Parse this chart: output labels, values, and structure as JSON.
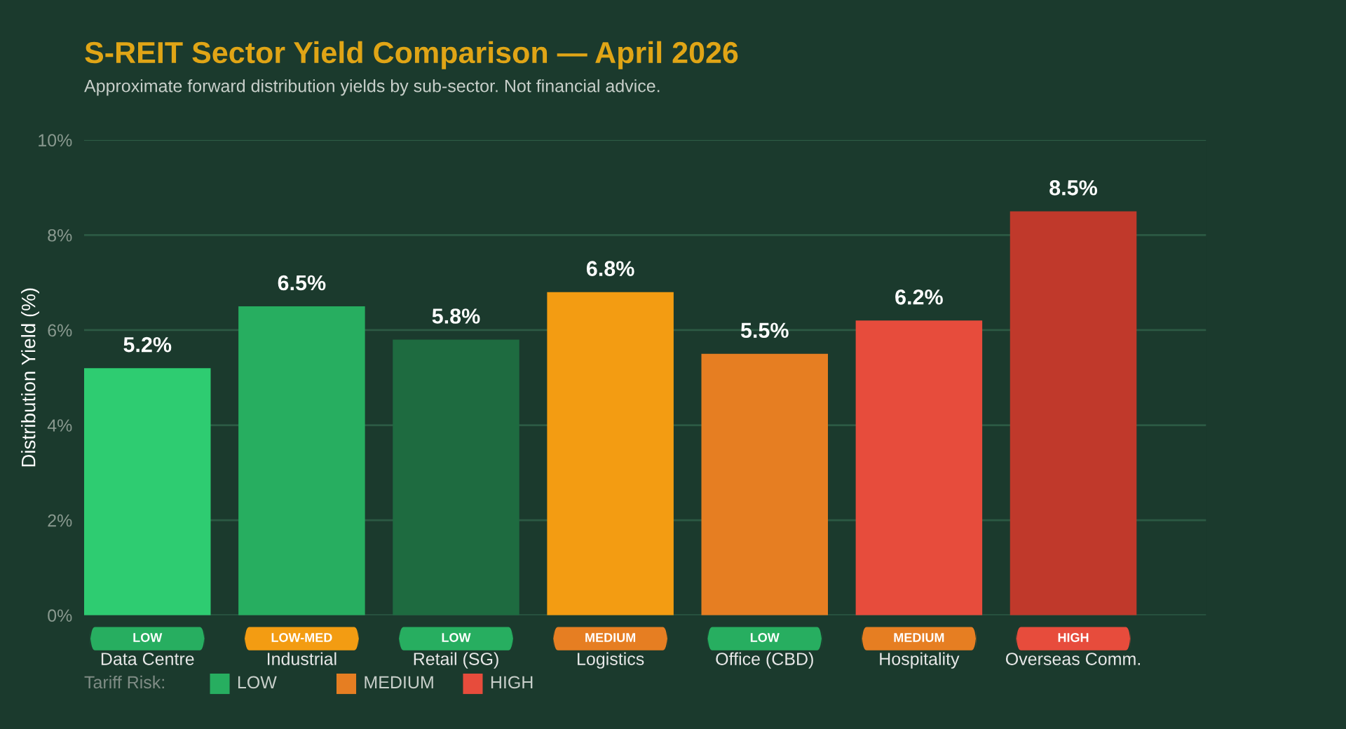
{
  "chart_data": {
    "type": "bar",
    "title": "S-REIT Sector Yield Comparison — April 2026",
    "subtitle": "Approximate forward distribution yields by sub-sector. Not financial advice.",
    "ylabel": "Distribution Yield (%)",
    "categories": [
      "Data Centre",
      "Industrial",
      "Retail (SG)",
      "Logistics",
      "Office (CBD)",
      "Hospitality",
      "Overseas Comm."
    ],
    "values": [
      5.2,
      6.5,
      5.8,
      6.8,
      5.5,
      6.2,
      8.5
    ],
    "colors": [
      "#2ecc71",
      "#27ae60",
      "#1e6b40",
      "#f39c12",
      "#e67e22",
      "#e74c3c",
      "#c0392b"
    ],
    "value_labels": [
      "5.2%",
      "6.5%",
      "5.8%",
      "6.8%",
      "5.5%",
      "6.2%",
      "8.5%"
    ],
    "ylim": [
      0,
      10
    ],
    "yticks": [
      {
        "value": 0,
        "label": "0%"
      },
      {
        "value": 2,
        "label": "2%"
      },
      {
        "value": 4,
        "label": "4%"
      },
      {
        "value": 6,
        "label": "6%"
      },
      {
        "value": 8,
        "label": "8%"
      },
      {
        "value": 10,
        "label": "10%"
      }
    ],
    "grid": "y",
    "annotations": [
      "LOW",
      "LOW-MED",
      "LOW",
      "MEDIUM",
      "LOW",
      "MEDIUM",
      "HIGH",
      "Tariff Risk:",
      "LOW",
      "MEDIUM",
      "HIGH"
    ]
  }
}
